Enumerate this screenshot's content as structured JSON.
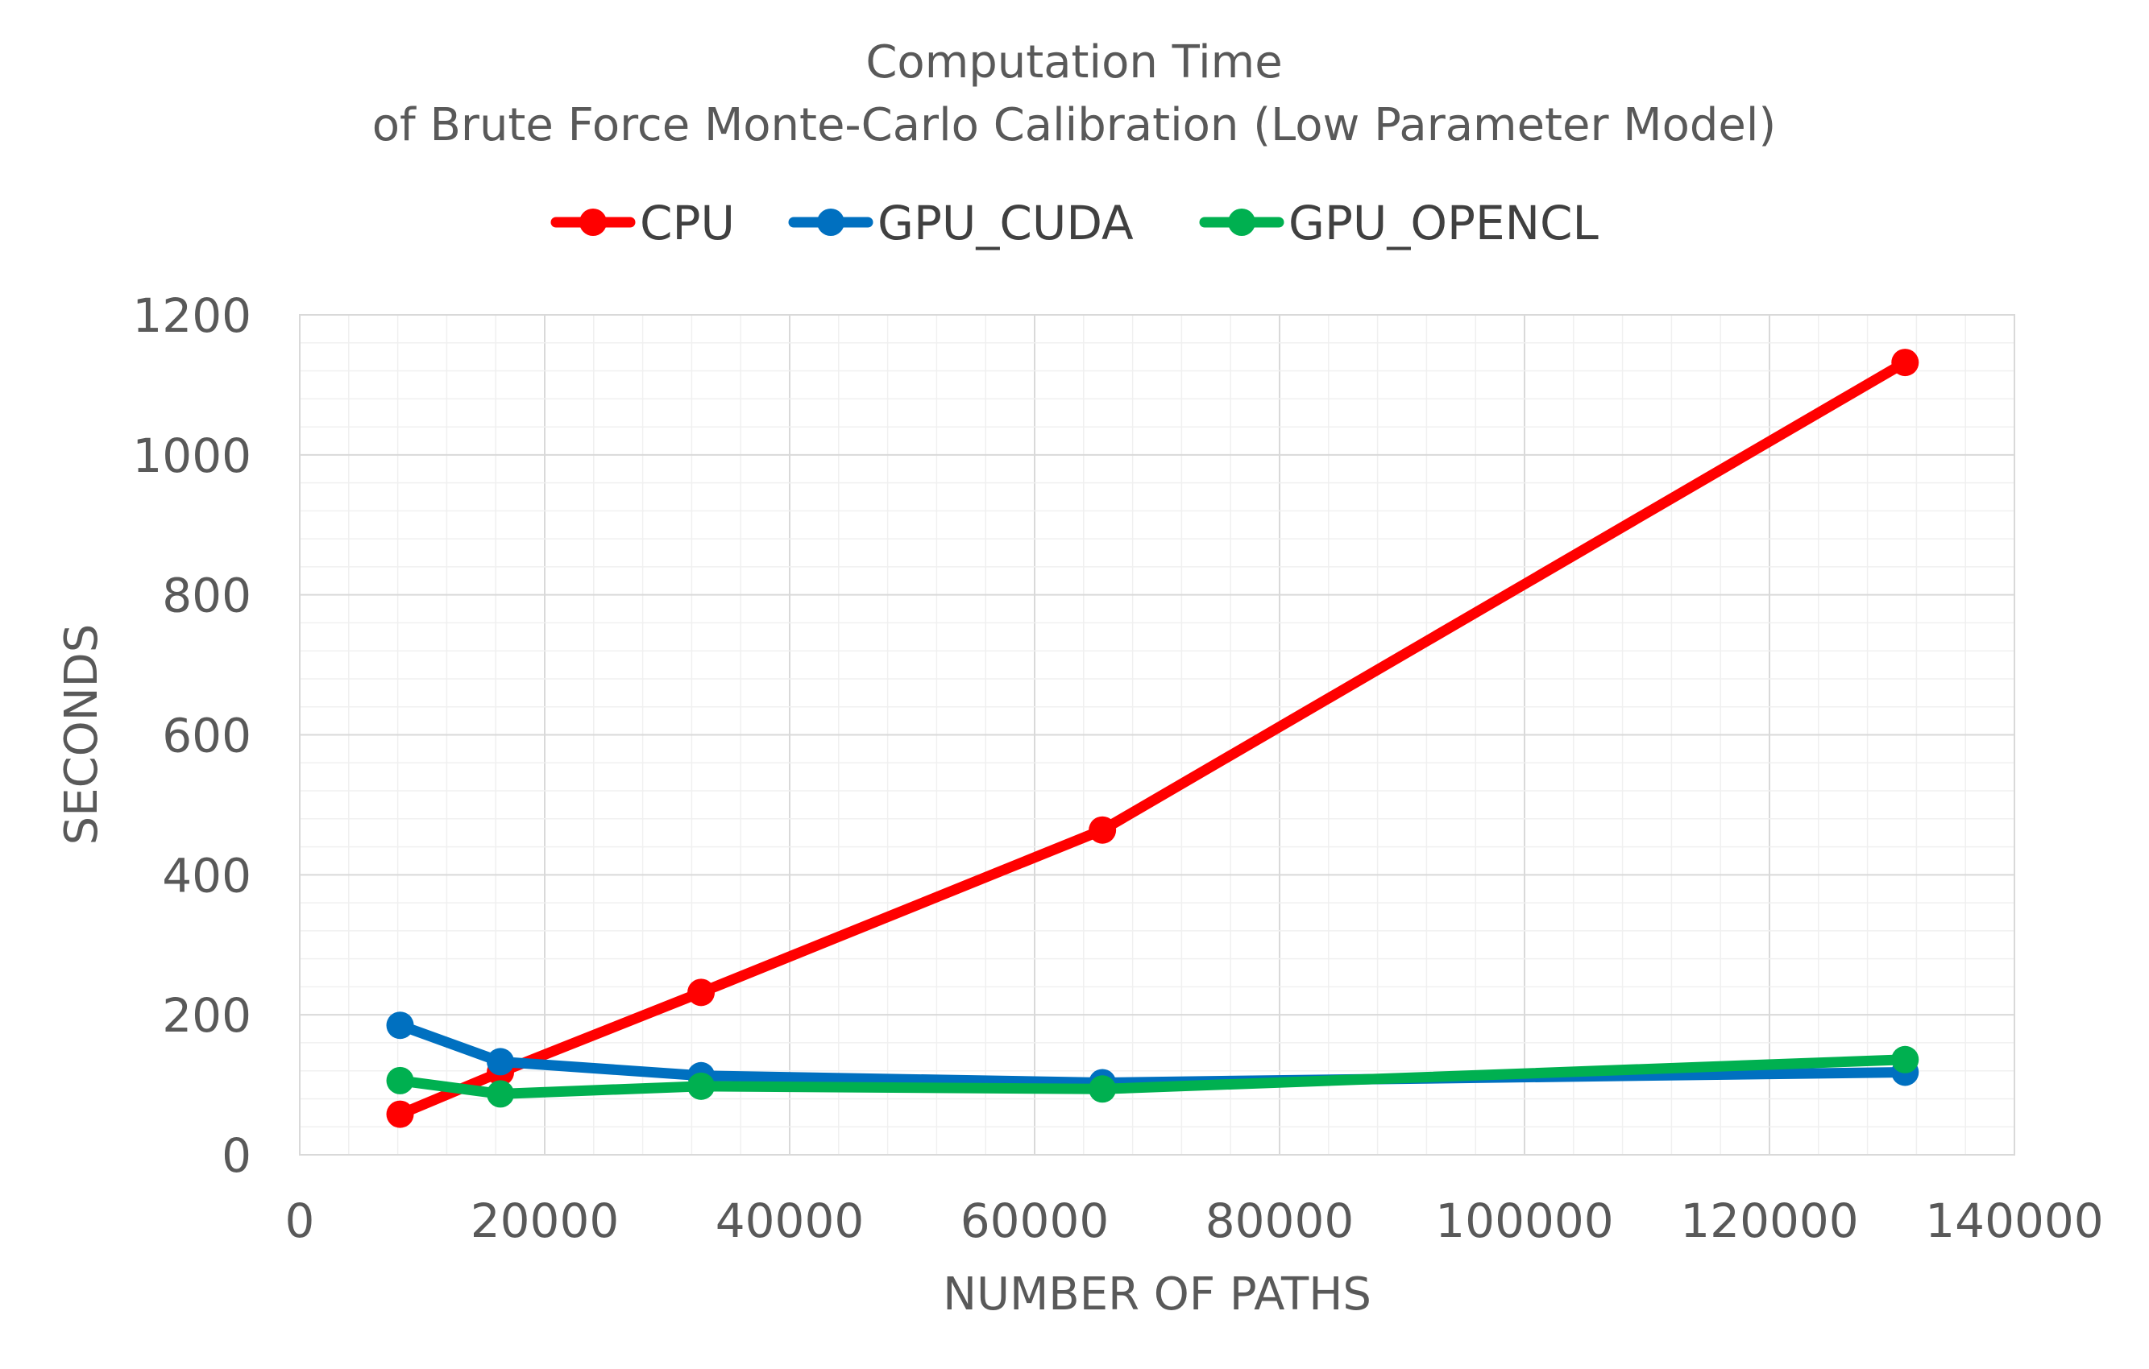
{
  "chart_data": {
    "type": "line",
    "title": "Computation Time",
    "subtitle": "of Brute Force Monte-Carlo Calibration (Low Parameter Model)",
    "xlabel": "NUMBER OF PATHS",
    "ylabel": "SECONDS",
    "xlim": [
      0,
      140000
    ],
    "ylim": [
      0,
      1200
    ],
    "x_ticks": [
      0,
      20000,
      40000,
      60000,
      80000,
      100000,
      120000,
      140000
    ],
    "y_ticks": [
      0,
      200,
      400,
      600,
      800,
      1000,
      1200
    ],
    "x_tick_labels": [
      "0",
      "20000",
      "40000",
      "60000",
      "80000",
      "100000",
      "120000",
      "140000"
    ],
    "y_tick_labels": [
      "0",
      "200",
      "400",
      "600",
      "800",
      "1000",
      "1200"
    ],
    "grid": true,
    "legend_position": "top-center",
    "x": [
      8192,
      16384,
      32768,
      65536,
      131072
    ],
    "series": [
      {
        "name": "CPU",
        "color": "#ff0000",
        "values": [
          58,
          118,
          232,
          464,
          1132
        ]
      },
      {
        "name": "GPU_CUDA",
        "color": "#0070c0",
        "values": [
          185,
          133,
          113,
          103,
          118
        ]
      },
      {
        "name": "GPU_OPENCL",
        "color": "#00b050",
        "values": [
          106,
          87,
          98,
          94,
          136
        ]
      }
    ]
  }
}
